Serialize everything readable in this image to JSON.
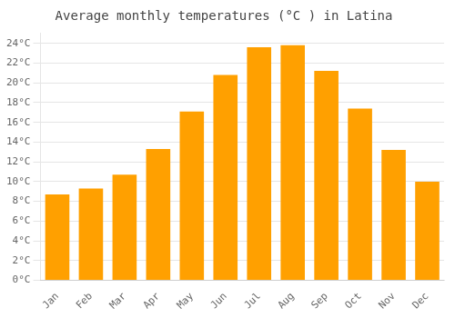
{
  "chart_data": {
    "type": "bar",
    "title": "Average monthly temperatures (°C ) in Latina",
    "categories": [
      "Jan",
      "Feb",
      "Mar",
      "Apr",
      "May",
      "Jun",
      "Jul",
      "Aug",
      "Sep",
      "Oct",
      "Nov",
      "Dec"
    ],
    "values": [
      8.7,
      9.3,
      10.7,
      13.3,
      17.1,
      20.8,
      23.6,
      23.8,
      21.2,
      17.4,
      13.2,
      10.0
    ],
    "color": "#FFA000",
    "ylim": [
      0,
      25
    ],
    "yticks": [
      {
        "value": 0,
        "label": "0°C"
      },
      {
        "value": 2,
        "label": "2°C"
      },
      {
        "value": 4,
        "label": "4°C"
      },
      {
        "value": 6,
        "label": "6°C"
      },
      {
        "value": 8,
        "label": "8°C"
      },
      {
        "value": 10,
        "label": "10°C"
      },
      {
        "value": 12,
        "label": "12°C"
      },
      {
        "value": 14,
        "label": "14°C"
      },
      {
        "value": 16,
        "label": "16°C"
      },
      {
        "value": 18,
        "label": "18°C"
      },
      {
        "value": 20,
        "label": "20°C"
      },
      {
        "value": 22,
        "label": "22°C"
      },
      {
        "value": 24,
        "label": "24°C"
      }
    ],
    "grid": true
  }
}
